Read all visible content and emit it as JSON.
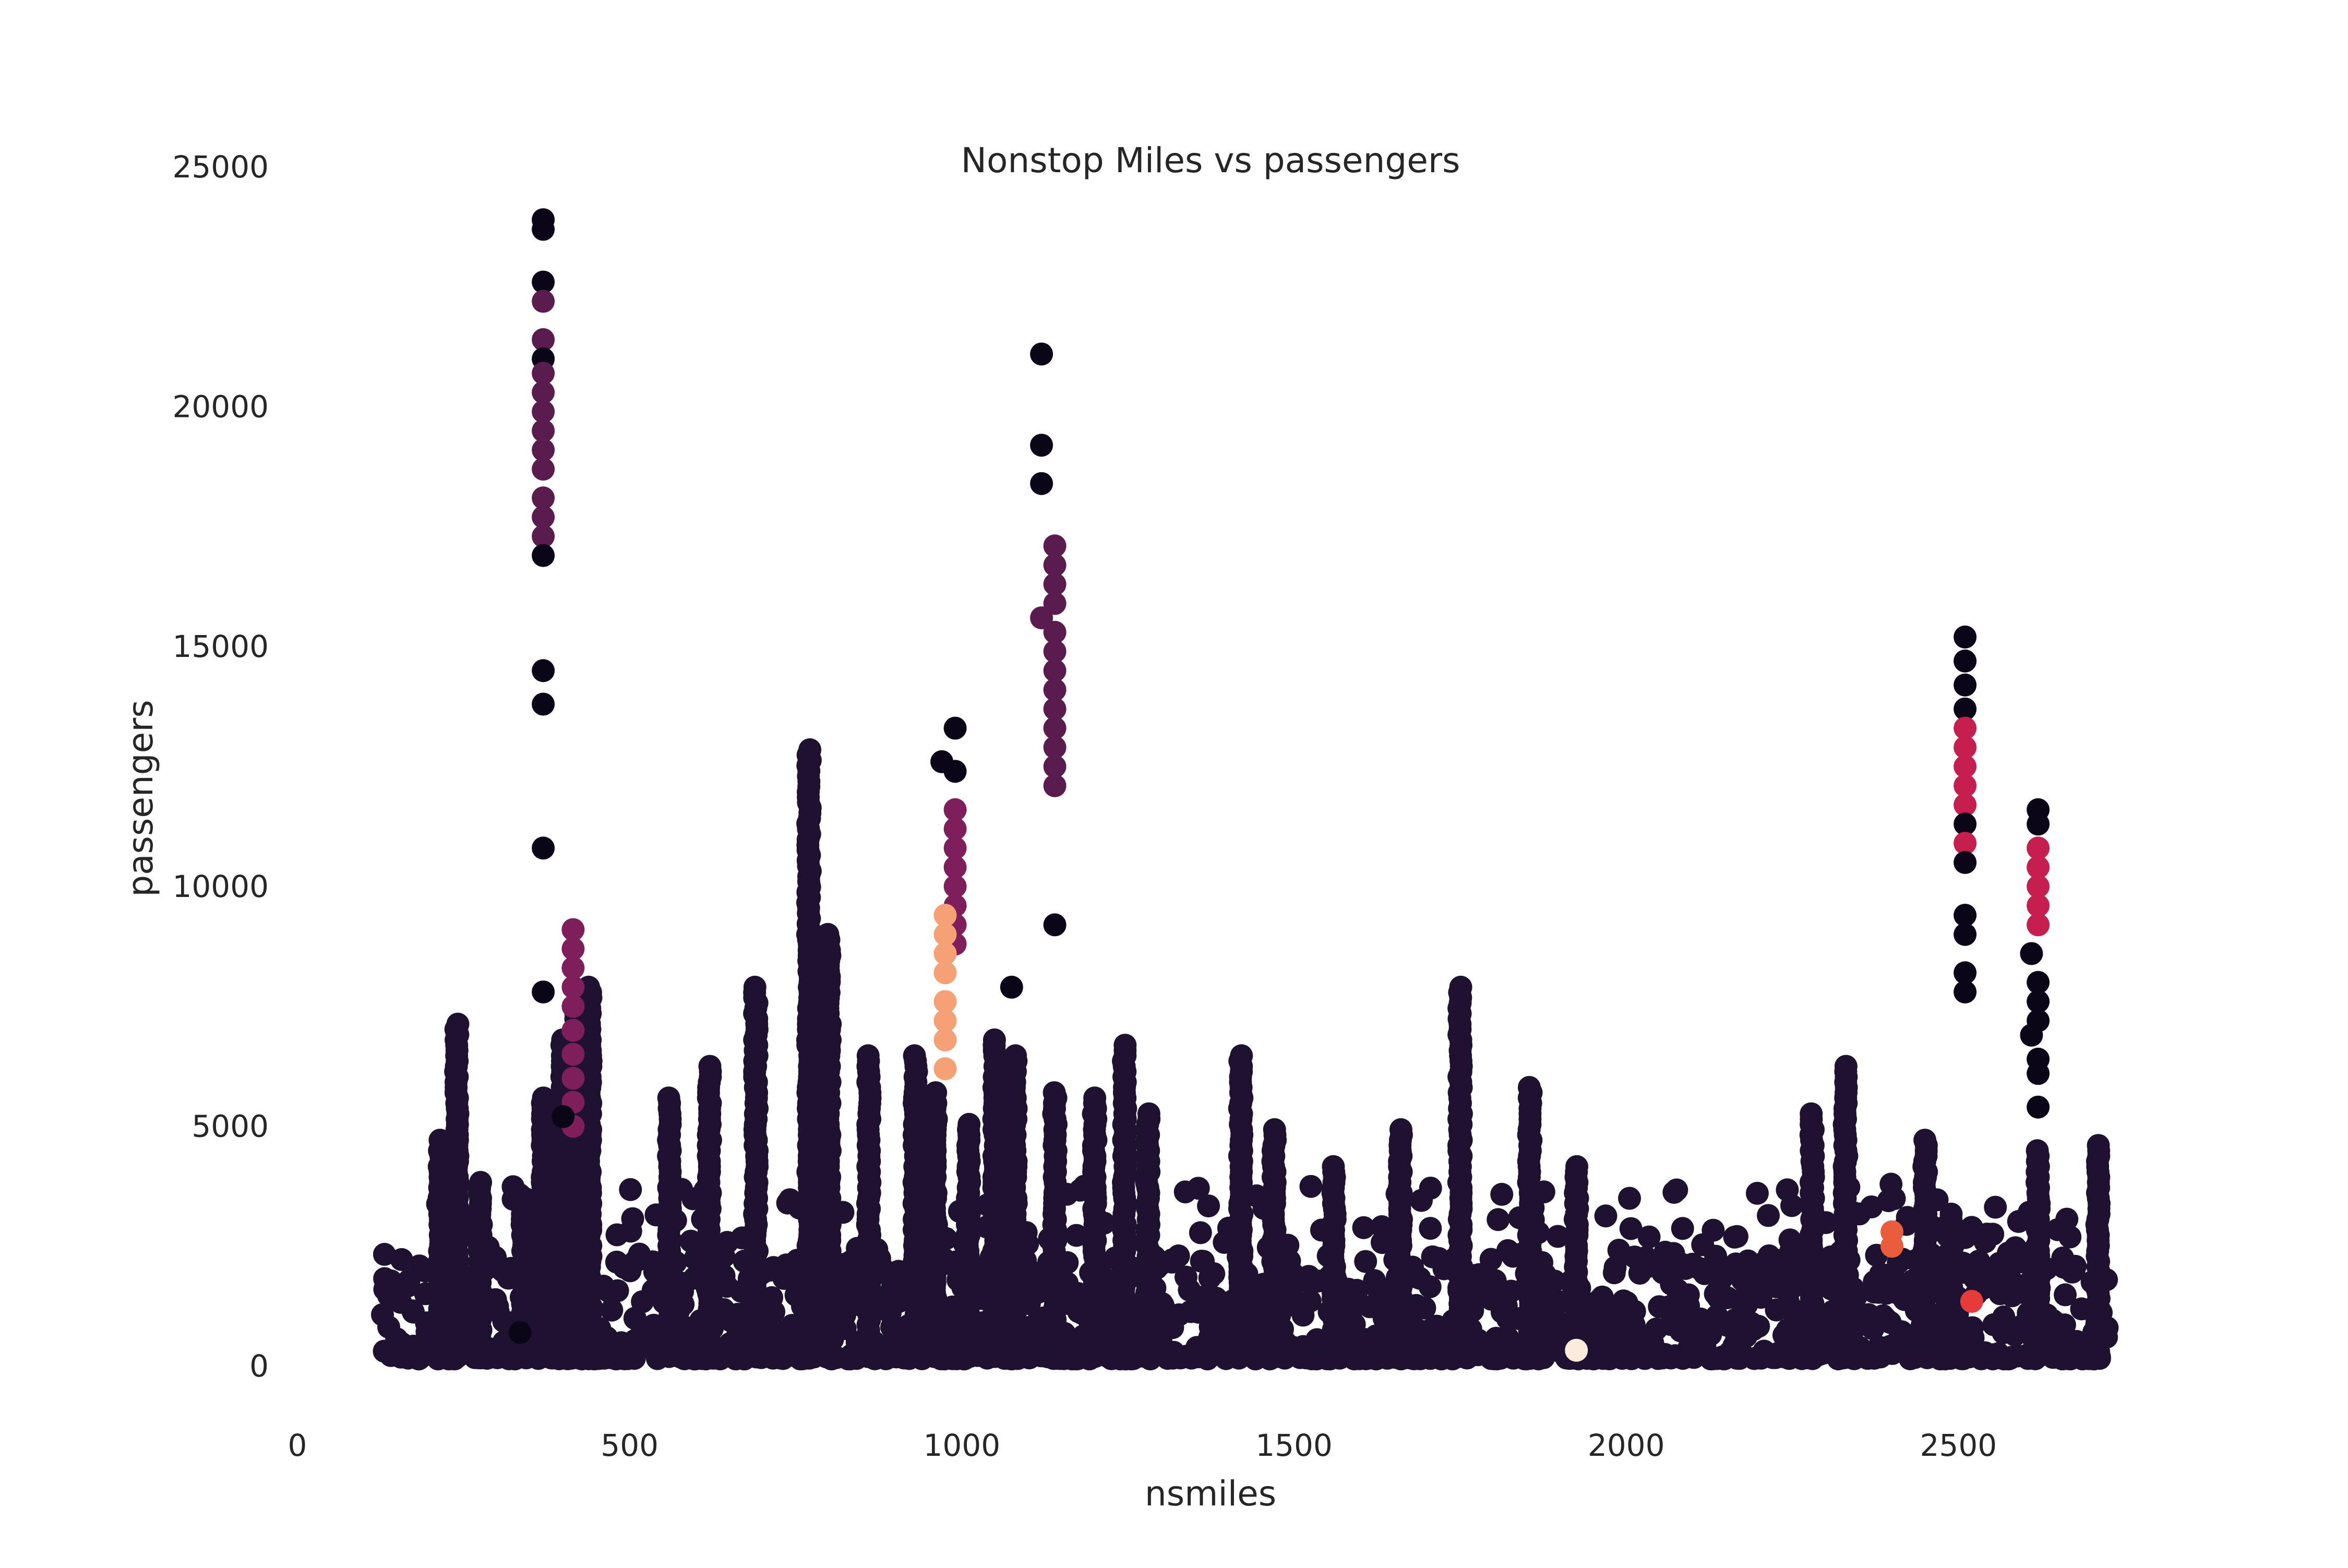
{
  "chart_data": {
    "type": "scatter",
    "title": "Nonstop Miles vs passengers",
    "xlabel": "nsmiles",
    "ylabel": "passengers",
    "xlim": [
      0,
      3000
    ],
    "ylim": [
      -1000,
      25000
    ],
    "x_ticks": [
      0,
      500,
      1000,
      1500,
      2000,
      2500
    ],
    "y_ticks": [
      0,
      5000,
      10000,
      15000,
      20000,
      25000
    ],
    "grid": false,
    "legend": "none",
    "colormap": "rocket",
    "colors": {
      "base": "#1e1230",
      "dark": "#0a0617",
      "plum": "#5a1c4e",
      "magenta": "#7e1f5c",
      "crimson": "#c61f4f",
      "red": "#e63b3b",
      "orange": "#ea5d3c",
      "salmon": "#f5a175",
      "cream": "#faebdd"
    },
    "vertical_strips": [
      {
        "x": 370,
        "y": [
          200,
          5600
        ],
        "color": "base"
      },
      {
        "x": 400,
        "y": [
          200,
          6800
        ],
        "color": "base"
      },
      {
        "x": 420,
        "y": [
          200,
          7500
        ],
        "color": "base"
      },
      {
        "x": 440,
        "y": [
          200,
          7900
        ],
        "color": "base"
      },
      {
        "x": 240,
        "y": [
          200,
          7200
        ],
        "color": "base"
      },
      {
        "x": 215,
        "y": [
          200,
          4800
        ],
        "color": "base"
      },
      {
        "x": 275,
        "y": [
          200,
          3900
        ],
        "color": "base"
      },
      {
        "x": 340,
        "y": [
          200,
          3500
        ],
        "color": "base"
      },
      {
        "x": 560,
        "y": [
          200,
          5600
        ],
        "color": "base"
      },
      {
        "x": 620,
        "y": [
          200,
          6300
        ],
        "color": "base"
      },
      {
        "x": 690,
        "y": [
          200,
          7900
        ],
        "color": "base"
      },
      {
        "x": 770,
        "y": [
          200,
          12900
        ],
        "color": "base"
      },
      {
        "x": 800,
        "y": [
          200,
          9100
        ],
        "color": "base"
      },
      {
        "x": 860,
        "y": [
          200,
          6500
        ],
        "color": "base"
      },
      {
        "x": 930,
        "y": [
          200,
          6500
        ],
        "color": "base"
      },
      {
        "x": 960,
        "y": [
          200,
          5800
        ],
        "color": "base"
      },
      {
        "x": 1010,
        "y": [
          200,
          5100
        ],
        "color": "base"
      },
      {
        "x": 1050,
        "y": [
          200,
          6900
        ],
        "color": "base"
      },
      {
        "x": 1080,
        "y": [
          200,
          6500
        ],
        "color": "base"
      },
      {
        "x": 1140,
        "y": [
          200,
          5800
        ],
        "color": "base"
      },
      {
        "x": 1200,
        "y": [
          200,
          5600
        ],
        "color": "base"
      },
      {
        "x": 1245,
        "y": [
          200,
          6700
        ],
        "color": "base"
      },
      {
        "x": 1280,
        "y": [
          200,
          5300
        ],
        "color": "base"
      },
      {
        "x": 1420,
        "y": [
          200,
          6500
        ],
        "color": "base"
      },
      {
        "x": 1470,
        "y": [
          200,
          5000
        ],
        "color": "base"
      },
      {
        "x": 1560,
        "y": [
          200,
          4200
        ],
        "color": "base"
      },
      {
        "x": 1660,
        "y": [
          200,
          5000
        ],
        "color": "base"
      },
      {
        "x": 1750,
        "y": [
          200,
          7900
        ],
        "color": "base"
      },
      {
        "x": 1855,
        "y": [
          200,
          5900
        ],
        "color": "base"
      },
      {
        "x": 1925,
        "y": [
          200,
          4200
        ],
        "color": "base"
      },
      {
        "x": 2280,
        "y": [
          200,
          5300
        ],
        "color": "base"
      },
      {
        "x": 2330,
        "y": [
          200,
          6300
        ],
        "color": "base"
      },
      {
        "x": 2450,
        "y": [
          200,
          4800
        ],
        "color": "base"
      },
      {
        "x": 2490,
        "y": [
          200,
          3200
        ],
        "color": "base"
      },
      {
        "x": 2620,
        "y": [
          200,
          4500
        ],
        "color": "base"
      },
      {
        "x": 2710,
        "y": [
          200,
          4600
        ],
        "color": "base"
      }
    ],
    "points": [
      {
        "x": 370,
        "y": 23900,
        "color": "dark"
      },
      {
        "x": 370,
        "y": 23700,
        "color": "dark"
      },
      {
        "x": 370,
        "y": 22600,
        "color": "dark"
      },
      {
        "x": 370,
        "y": 22200,
        "color": "plum"
      },
      {
        "x": 370,
        "y": 21400,
        "color": "plum"
      },
      {
        "x": 370,
        "y": 21000,
        "color": "dark"
      },
      {
        "x": 370,
        "y": 20700,
        "color": "plum"
      },
      {
        "x": 370,
        "y": 20300,
        "color": "plum"
      },
      {
        "x": 370,
        "y": 19900,
        "color": "plum"
      },
      {
        "x": 370,
        "y": 19500,
        "color": "plum"
      },
      {
        "x": 370,
        "y": 19100,
        "color": "plum"
      },
      {
        "x": 370,
        "y": 18700,
        "color": "plum"
      },
      {
        "x": 370,
        "y": 18100,
        "color": "plum"
      },
      {
        "x": 370,
        "y": 17700,
        "color": "plum"
      },
      {
        "x": 370,
        "y": 17300,
        "color": "plum"
      },
      {
        "x": 370,
        "y": 16900,
        "color": "dark"
      },
      {
        "x": 370,
        "y": 14500,
        "color": "dark"
      },
      {
        "x": 370,
        "y": 13800,
        "color": "dark"
      },
      {
        "x": 370,
        "y": 10800,
        "color": "dark"
      },
      {
        "x": 370,
        "y": 7800,
        "color": "dark"
      },
      {
        "x": 415,
        "y": 9100,
        "color": "magenta"
      },
      {
        "x": 415,
        "y": 8700,
        "color": "magenta"
      },
      {
        "x": 415,
        "y": 8300,
        "color": "magenta"
      },
      {
        "x": 415,
        "y": 7900,
        "color": "magenta"
      },
      {
        "x": 415,
        "y": 7500,
        "color": "magenta"
      },
      {
        "x": 415,
        "y": 7000,
        "color": "magenta"
      },
      {
        "x": 415,
        "y": 6500,
        "color": "magenta"
      },
      {
        "x": 415,
        "y": 6000,
        "color": "magenta"
      },
      {
        "x": 415,
        "y": 5500,
        "color": "magenta"
      },
      {
        "x": 415,
        "y": 5000,
        "color": "magenta"
      },
      {
        "x": 400,
        "y": 5200,
        "color": "dark"
      },
      {
        "x": 335,
        "y": 700,
        "color": "dark"
      },
      {
        "x": 1120,
        "y": 21100,
        "color": "dark"
      },
      {
        "x": 1120,
        "y": 19200,
        "color": "dark"
      },
      {
        "x": 1120,
        "y": 18400,
        "color": "dark"
      },
      {
        "x": 1140,
        "y": 17100,
        "color": "plum"
      },
      {
        "x": 1140,
        "y": 16700,
        "color": "plum"
      },
      {
        "x": 1140,
        "y": 16300,
        "color": "plum"
      },
      {
        "x": 1140,
        "y": 15900,
        "color": "plum"
      },
      {
        "x": 1120,
        "y": 15600,
        "color": "plum"
      },
      {
        "x": 1140,
        "y": 15300,
        "color": "plum"
      },
      {
        "x": 1140,
        "y": 14900,
        "color": "plum"
      },
      {
        "x": 1140,
        "y": 14500,
        "color": "plum"
      },
      {
        "x": 1140,
        "y": 14100,
        "color": "plum"
      },
      {
        "x": 1140,
        "y": 13700,
        "color": "plum"
      },
      {
        "x": 1140,
        "y": 13300,
        "color": "plum"
      },
      {
        "x": 1140,
        "y": 12900,
        "color": "plum"
      },
      {
        "x": 1140,
        "y": 12500,
        "color": "plum"
      },
      {
        "x": 1140,
        "y": 12100,
        "color": "plum"
      },
      {
        "x": 1140,
        "y": 9200,
        "color": "dark"
      },
      {
        "x": 1075,
        "y": 7900,
        "color": "dark"
      },
      {
        "x": 990,
        "y": 13300,
        "color": "dark"
      },
      {
        "x": 970,
        "y": 12600,
        "color": "dark"
      },
      {
        "x": 990,
        "y": 12400,
        "color": "dark"
      },
      {
        "x": 990,
        "y": 11600,
        "color": "magenta"
      },
      {
        "x": 990,
        "y": 11200,
        "color": "magenta"
      },
      {
        "x": 990,
        "y": 10800,
        "color": "magenta"
      },
      {
        "x": 990,
        "y": 10400,
        "color": "magenta"
      },
      {
        "x": 990,
        "y": 10000,
        "color": "magenta"
      },
      {
        "x": 990,
        "y": 9600,
        "color": "magenta"
      },
      {
        "x": 990,
        "y": 9200,
        "color": "magenta"
      },
      {
        "x": 990,
        "y": 8800,
        "color": "magenta"
      },
      {
        "x": 975,
        "y": 9400,
        "color": "salmon"
      },
      {
        "x": 975,
        "y": 9000,
        "color": "salmon"
      },
      {
        "x": 975,
        "y": 8600,
        "color": "salmon"
      },
      {
        "x": 975,
        "y": 8200,
        "color": "salmon"
      },
      {
        "x": 975,
        "y": 7600,
        "color": "salmon"
      },
      {
        "x": 975,
        "y": 7200,
        "color": "salmon"
      },
      {
        "x": 975,
        "y": 6800,
        "color": "salmon"
      },
      {
        "x": 975,
        "y": 6200,
        "color": "salmon"
      },
      {
        "x": 2510,
        "y": 15200,
        "color": "dark"
      },
      {
        "x": 2510,
        "y": 14700,
        "color": "dark"
      },
      {
        "x": 2510,
        "y": 14200,
        "color": "dark"
      },
      {
        "x": 2510,
        "y": 13700,
        "color": "dark"
      },
      {
        "x": 2510,
        "y": 13300,
        "color": "crimson"
      },
      {
        "x": 2510,
        "y": 12900,
        "color": "crimson"
      },
      {
        "x": 2510,
        "y": 12500,
        "color": "crimson"
      },
      {
        "x": 2510,
        "y": 12100,
        "color": "crimson"
      },
      {
        "x": 2510,
        "y": 11700,
        "color": "crimson"
      },
      {
        "x": 2510,
        "y": 11300,
        "color": "dark"
      },
      {
        "x": 2510,
        "y": 10900,
        "color": "crimson"
      },
      {
        "x": 2510,
        "y": 10500,
        "color": "dark"
      },
      {
        "x": 2510,
        "y": 9400,
        "color": "dark"
      },
      {
        "x": 2510,
        "y": 9000,
        "color": "dark"
      },
      {
        "x": 2510,
        "y": 8200,
        "color": "dark"
      },
      {
        "x": 2510,
        "y": 7800,
        "color": "dark"
      },
      {
        "x": 2620,
        "y": 11600,
        "color": "dark"
      },
      {
        "x": 2620,
        "y": 11300,
        "color": "dark"
      },
      {
        "x": 2620,
        "y": 10800,
        "color": "crimson"
      },
      {
        "x": 2620,
        "y": 10400,
        "color": "crimson"
      },
      {
        "x": 2620,
        "y": 10000,
        "color": "crimson"
      },
      {
        "x": 2620,
        "y": 9600,
        "color": "crimson"
      },
      {
        "x": 2620,
        "y": 9200,
        "color": "crimson"
      },
      {
        "x": 2610,
        "y": 8600,
        "color": "dark"
      },
      {
        "x": 2620,
        "y": 8000,
        "color": "dark"
      },
      {
        "x": 2620,
        "y": 7600,
        "color": "dark"
      },
      {
        "x": 2620,
        "y": 7200,
        "color": "dark"
      },
      {
        "x": 2610,
        "y": 6900,
        "color": "dark"
      },
      {
        "x": 2620,
        "y": 6400,
        "color": "dark"
      },
      {
        "x": 2620,
        "y": 6100,
        "color": "dark"
      },
      {
        "x": 2620,
        "y": 5400,
        "color": "dark"
      },
      {
        "x": 2400,
        "y": 2800,
        "color": "orange"
      },
      {
        "x": 2400,
        "y": 2500,
        "color": "orange"
      },
      {
        "x": 2520,
        "y": 1350,
        "color": "red"
      },
      {
        "x": 1925,
        "y": 330,
        "color": "cream"
      }
    ]
  }
}
